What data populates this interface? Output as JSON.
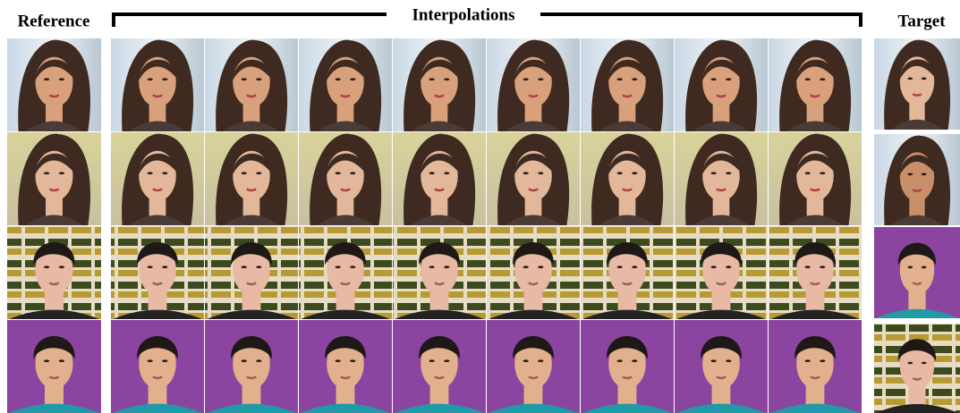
{
  "header": {
    "reference": "Reference",
    "interpolations": "Interpolations",
    "target": "Target"
  }
}
